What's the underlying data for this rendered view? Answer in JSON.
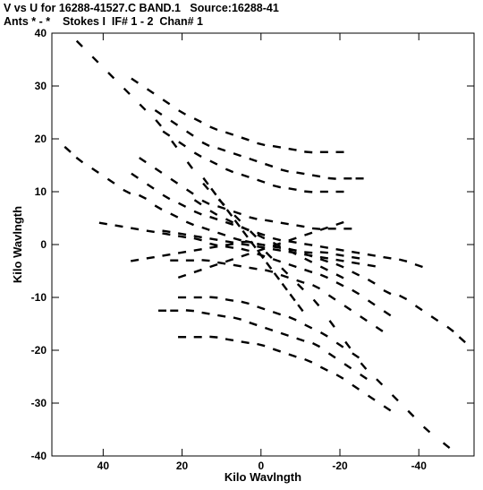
{
  "header": {
    "line1": "V vs U for 16288-41527.C BAND.1   Source:16288-41",
    "line2": "Ants * - *    Stokes I  IF# 1 - 2  Chan# 1"
  },
  "chart_data": {
    "type": "scatter",
    "xlabel": "Kilo Wavlngth",
    "ylabel": "Kilo Wavlngth",
    "xlim": [
      53,
      -54
    ],
    "ylim": [
      -40,
      40
    ],
    "xticks": [
      40,
      20,
      0,
      -20,
      -40
    ],
    "yticks": [
      40,
      30,
      20,
      10,
      0,
      -10,
      -20,
      -30,
      -40
    ],
    "marker_color": "#000000",
    "series": [
      {
        "points": [
          [
            49,
            18
          ],
          [
            46,
            16
          ],
          [
            42,
            14
          ],
          [
            38,
            12
          ],
          [
            34,
            10
          ],
          [
            30,
            9
          ],
          [
            26,
            7
          ],
          [
            22,
            5.5
          ],
          [
            18,
            4
          ],
          [
            14,
            3
          ],
          [
            10,
            2
          ],
          [
            6,
            1
          ],
          [
            3,
            0.5
          ],
          [
            0,
            0
          ],
          [
            -4,
            -0.5
          ],
          [
            -8,
            -1
          ],
          [
            -12,
            -2
          ],
          [
            -16,
            -3
          ],
          [
            -20,
            -4
          ],
          [
            -24,
            -5.5
          ],
          [
            -28,
            -7
          ],
          [
            -32,
            -9
          ],
          [
            -36,
            -10
          ],
          [
            -40,
            -12
          ],
          [
            -44,
            -14
          ],
          [
            -48,
            -16
          ],
          [
            -51,
            -18
          ]
        ]
      },
      {
        "points": [
          [
            46,
            38
          ],
          [
            42,
            35
          ],
          [
            38,
            32
          ],
          [
            34,
            29
          ],
          [
            30,
            26
          ],
          [
            26,
            23
          ],
          [
            22,
            19
          ],
          [
            18,
            15
          ],
          [
            14,
            11
          ],
          [
            10,
            8
          ],
          [
            6,
            5
          ],
          [
            2,
            2
          ]
        ]
      },
      {
        "points": [
          [
            -2,
            -2
          ],
          [
            -6,
            -5
          ],
          [
            -10,
            -8
          ],
          [
            -14,
            -11
          ],
          [
            -18,
            -15
          ],
          [
            -22,
            -19
          ],
          [
            -26,
            -23
          ],
          [
            -30,
            -26
          ],
          [
            -34,
            -29
          ],
          [
            -38,
            -32
          ],
          [
            -42,
            -35
          ],
          [
            -47,
            -38
          ]
        ]
      },
      {
        "points": [
          [
            32,
            31
          ],
          [
            28,
            29
          ],
          [
            24,
            27
          ],
          [
            20,
            25
          ],
          [
            16,
            23.5
          ],
          [
            12,
            22
          ],
          [
            8,
            21
          ],
          [
            4,
            20
          ],
          [
            0,
            19
          ],
          [
            -4,
            18.5
          ],
          [
            -8,
            18
          ],
          [
            -12,
            17.5
          ],
          [
            -16,
            17.5
          ],
          [
            -20,
            17.5
          ]
        ]
      },
      {
        "points": [
          [
            -32,
            -31
          ],
          [
            -28,
            -29
          ],
          [
            -24,
            -27
          ],
          [
            -20,
            -25
          ],
          [
            -16,
            -23.5
          ],
          [
            -12,
            -22
          ],
          [
            -8,
            -21
          ],
          [
            -4,
            -20
          ],
          [
            0,
            -19
          ],
          [
            4,
            -18.5
          ],
          [
            8,
            -18
          ],
          [
            12,
            -17.5
          ],
          [
            16,
            -17.5
          ],
          [
            20,
            -17.5
          ]
        ]
      },
      {
        "points": [
          [
            26,
            25
          ],
          [
            22,
            23
          ],
          [
            18,
            21
          ],
          [
            14,
            19
          ],
          [
            10,
            18
          ],
          [
            6,
            17
          ],
          [
            2,
            16
          ],
          [
            -2,
            15
          ],
          [
            -6,
            14
          ],
          [
            -10,
            13.5
          ],
          [
            -14,
            13
          ],
          [
            -18,
            12.5
          ],
          [
            -22,
            12.5
          ],
          [
            -25,
            12.5
          ]
        ]
      },
      {
        "points": [
          [
            -26,
            -25
          ],
          [
            -22,
            -23
          ],
          [
            -18,
            -21
          ],
          [
            -14,
            -19
          ],
          [
            -10,
            -18
          ],
          [
            -6,
            -17
          ],
          [
            -2,
            -16
          ],
          [
            2,
            -15
          ],
          [
            6,
            -14
          ],
          [
            10,
            -13.5
          ],
          [
            14,
            -13
          ],
          [
            18,
            -12.5
          ],
          [
            22,
            -12.5
          ],
          [
            25,
            -12.5
          ]
        ]
      },
      {
        "points": [
          [
            24,
            21
          ],
          [
            20,
            19
          ],
          [
            16,
            17
          ],
          [
            12,
            15.5
          ],
          [
            8,
            14
          ],
          [
            4,
            13
          ],
          [
            0,
            12
          ],
          [
            -4,
            11
          ],
          [
            -8,
            10.5
          ],
          [
            -12,
            10
          ],
          [
            -16,
            10
          ],
          [
            -20,
            10
          ]
        ]
      },
      {
        "points": [
          [
            -24,
            -21
          ],
          [
            -20,
            -19
          ],
          [
            -16,
            -17
          ],
          [
            -12,
            -15.5
          ],
          [
            -8,
            -14
          ],
          [
            -4,
            -13
          ],
          [
            0,
            -12
          ],
          [
            4,
            -11
          ],
          [
            8,
            -10.5
          ],
          [
            12,
            -10
          ],
          [
            16,
            -10
          ],
          [
            20,
            -10
          ]
        ]
      },
      {
        "points": [
          [
            32,
            13
          ],
          [
            28,
            11
          ],
          [
            24,
            9
          ],
          [
            20,
            7.5
          ],
          [
            16,
            6
          ],
          [
            12,
            5
          ],
          [
            8,
            4
          ],
          [
            4,
            3
          ],
          [
            0,
            2
          ],
          [
            -4,
            1
          ],
          [
            -8,
            0.5
          ],
          [
            -12,
            0
          ],
          [
            -16,
            -0.5
          ],
          [
            -20,
            -1
          ],
          [
            -24,
            -1.5
          ],
          [
            -28,
            -2
          ],
          [
            -32,
            -2.5
          ],
          [
            -36,
            -3
          ],
          [
            -40,
            -4
          ]
        ]
      },
      {
        "points": [
          [
            40,
            4
          ],
          [
            36,
            3.5
          ],
          [
            32,
            3
          ],
          [
            28,
            2.5
          ],
          [
            24,
            2
          ],
          [
            20,
            1.5
          ],
          [
            16,
            1
          ],
          [
            12,
            0
          ],
          [
            8,
            -0.5
          ],
          [
            4,
            -1
          ],
          [
            0,
            -2
          ],
          [
            -4,
            -3
          ],
          [
            -8,
            -4
          ],
          [
            -12,
            -5
          ],
          [
            -16,
            -6
          ],
          [
            -20,
            -7.5
          ],
          [
            -24,
            -9
          ],
          [
            -28,
            -11
          ],
          [
            -32,
            -13
          ]
        ]
      },
      {
        "points": [
          [
            30,
            16
          ],
          [
            26,
            14
          ],
          [
            22,
            12
          ],
          [
            18,
            10
          ],
          [
            14,
            8
          ],
          [
            10,
            7
          ],
          [
            6,
            6
          ],
          [
            2,
            5
          ],
          [
            -2,
            4.5
          ],
          [
            -6,
            4
          ],
          [
            -10,
            3.5
          ],
          [
            -14,
            3
          ],
          [
            -18,
            3
          ],
          [
            -22,
            3
          ]
        ]
      },
      {
        "points": [
          [
            22,
            -3
          ],
          [
            18,
            -3
          ],
          [
            14,
            -3
          ],
          [
            10,
            -3.5
          ],
          [
            6,
            -4
          ],
          [
            2,
            -4.5
          ],
          [
            -2,
            -5
          ],
          [
            -6,
            -6
          ],
          [
            -10,
            -7
          ],
          [
            -14,
            -8
          ],
          [
            -18,
            -10
          ],
          [
            -22,
            -12
          ],
          [
            -26,
            -14
          ],
          [
            -30,
            -16
          ]
        ]
      },
      {
        "points": [
          [
            32,
            -3
          ],
          [
            28,
            -2.5
          ],
          [
            24,
            -2
          ],
          [
            20,
            -1.5
          ],
          [
            16,
            -1
          ],
          [
            12,
            -0.5
          ],
          [
            8,
            0
          ],
          [
            4,
            0.5
          ],
          [
            0,
            0
          ],
          [
            -4,
            -0.5
          ],
          [
            -8,
            -1
          ],
          [
            -12,
            -1.5
          ],
          [
            -16,
            -1.5
          ],
          [
            -20,
            -2
          ],
          [
            -24,
            -2.5
          ]
        ]
      },
      {
        "points": [
          [
            24,
            2.5
          ],
          [
            20,
            2
          ],
          [
            16,
            1.5
          ],
          [
            12,
            1
          ],
          [
            8,
            0.5
          ],
          [
            4,
            0
          ],
          [
            0,
            -0.5
          ],
          [
            -4,
            -1
          ],
          [
            -8,
            -1.5
          ],
          [
            -12,
            -2
          ],
          [
            -16,
            -2.5
          ],
          [
            -20,
            -3
          ],
          [
            -24,
            -3.5
          ],
          [
            -28,
            -4
          ]
        ]
      },
      {
        "points": [
          [
            14,
            12
          ],
          [
            12,
            10
          ],
          [
            10,
            8
          ],
          [
            8,
            6
          ],
          [
            6,
            4
          ],
          [
            4,
            2
          ],
          [
            2,
            0
          ],
          [
            0,
            -2
          ],
          [
            -2,
            -4
          ],
          [
            -4,
            -6
          ],
          [
            -6,
            -8
          ],
          [
            -8,
            -10
          ],
          [
            -10,
            -12
          ]
        ]
      },
      {
        "points": [
          [
            16,
            8
          ],
          [
            12,
            6
          ],
          [
            8,
            4.5
          ],
          [
            4,
            3
          ],
          [
            0,
            1.5
          ],
          [
            -4,
            0
          ],
          [
            -8,
            -1.5
          ],
          [
            -12,
            -3
          ],
          [
            -16,
            -4.5
          ],
          [
            -20,
            -6
          ]
        ]
      },
      {
        "points": [
          [
            20,
            -6
          ],
          [
            16,
            -5
          ],
          [
            12,
            -4
          ],
          [
            8,
            -3
          ],
          [
            4,
            -2
          ],
          [
            0,
            -1
          ],
          [
            -4,
            0
          ],
          [
            -8,
            1
          ],
          [
            -12,
            2
          ],
          [
            -16,
            3
          ],
          [
            -20,
            4
          ]
        ]
      }
    ]
  }
}
